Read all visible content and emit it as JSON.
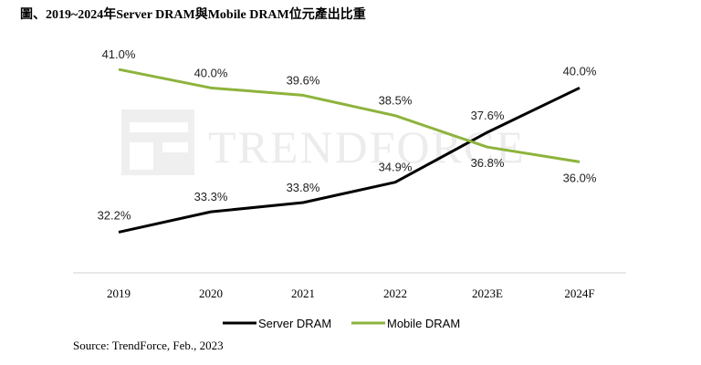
{
  "title": "圖、2019~2024年Server DRAM與Mobile DRAM位元產出比重",
  "source": "Source: TrendForce, Feb.,  2023",
  "watermark": "TRENDFORCE",
  "colors": {
    "server": "#000000",
    "mobile": "#8db33c",
    "axis": "#d0d0d0"
  },
  "chart_data": {
    "type": "line",
    "title": "圖、2019~2024年Server DRAM與Mobile DRAM位元產出比重",
    "categories": [
      "2019",
      "2020",
      "2021",
      "2022",
      "2023E",
      "2024F"
    ],
    "series": [
      {
        "name": "Server DRAM",
        "values": [
          32.2,
          33.3,
          33.8,
          34.9,
          37.6,
          40.0
        ],
        "labels": [
          "32.2%",
          "33.3%",
          "33.8%",
          "34.9%",
          "37.6%",
          "40.0%"
        ]
      },
      {
        "name": "Mobile DRAM",
        "values": [
          41.0,
          40.0,
          39.6,
          38.5,
          36.8,
          36.0
        ],
        "labels": [
          "41.0%",
          "40.0%",
          "39.6%",
          "38.5%",
          "36.8%",
          "36.0%"
        ]
      }
    ],
    "xlabel": "",
    "ylabel": "",
    "ylim": [
      30.0,
      41.2
    ],
    "legend": "bottom"
  }
}
